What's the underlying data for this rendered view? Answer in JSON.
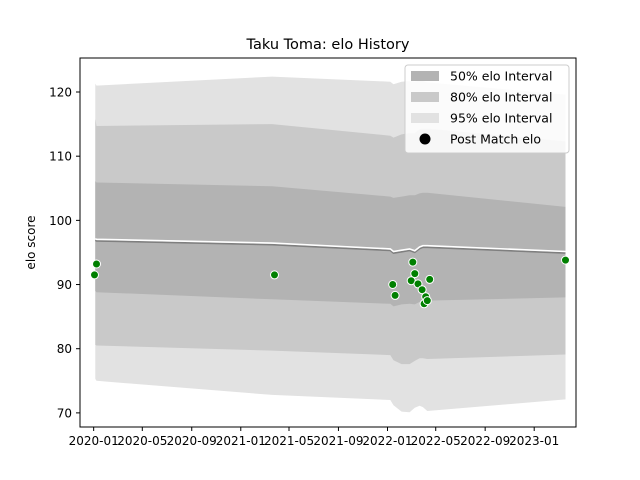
{
  "chart_data": {
    "type": "line",
    "title": "Taku Toma: elo History",
    "xlabel": "",
    "ylabel": "elo score",
    "xlim": [
      "2019-11-28",
      "2023-04-15"
    ],
    "ylim": [
      67.8,
      125.3
    ],
    "x_ticks": [
      "2020-01",
      "2020-05",
      "2020-09",
      "2021-01",
      "2021-05",
      "2021-09",
      "2022-01",
      "2022-05",
      "2022-09",
      "2023-01"
    ],
    "y_ticks": [
      70,
      80,
      90,
      100,
      110,
      120
    ],
    "grid": false,
    "legend_position": "top-right",
    "legend": [
      {
        "label": "50% elo Interval",
        "kind": "band",
        "color": "#b3b3b3"
      },
      {
        "label": "80% elo Interval",
        "kind": "band",
        "color": "#c9c9c9"
      },
      {
        "label": "95% elo Interval",
        "kind": "band",
        "color": "#e2e2e2"
      },
      {
        "label": "Post Match elo",
        "kind": "marker",
        "color": "#000000"
      }
    ],
    "colors": {
      "band50": "#b3b3b3",
      "band80": "#c9c9c9",
      "band95": "#e2e2e2",
      "mean_line": "#7f7f7f",
      "mean_highlight": "#ffffff",
      "points": "#008000"
    },
    "series": [
      {
        "name": "mean",
        "x": [
          "2020-01-05",
          "2020-01-08",
          "2021-03-20",
          "2022-01-08",
          "2022-01-16",
          "2022-02-05",
          "2022-02-25",
          "2022-03-10",
          "2022-03-22",
          "2022-03-30",
          "2022-04-10",
          "2023-03-20"
        ],
        "y": [
          96.9,
          96.8,
          96.2,
          95.3,
          94.9,
          95.1,
          95.3,
          95.0,
          95.6,
          95.8,
          95.8,
          94.9
        ]
      }
    ],
    "bands": {
      "x": [
        "2020-01-05",
        "2020-01-08",
        "2021-03-20",
        "2022-01-08",
        "2022-01-16",
        "2022-02-05",
        "2022-02-25",
        "2022-03-10",
        "2022-03-22",
        "2022-03-30",
        "2022-04-10",
        "2023-03-20"
      ],
      "band95_upper": [
        121.3,
        121.0,
        122.4,
        121.6,
        121.2,
        121.6,
        121.7,
        121.6,
        121.8,
        121.7,
        121.5,
        119.6
      ],
      "band95_lower": [
        75.3,
        75.0,
        72.8,
        72.0,
        71.2,
        70.2,
        70.1,
        70.8,
        71.1,
        70.9,
        70.3,
        72.1
      ],
      "band80_upper": [
        115.8,
        114.7,
        115.0,
        113.2,
        112.9,
        113.4,
        113.6,
        113.6,
        114.2,
        114.3,
        114.3,
        112.3
      ],
      "band80_lower": [
        80.6,
        80.5,
        79.7,
        79.0,
        78.2,
        77.6,
        77.6,
        78.1,
        78.5,
        78.5,
        78.4,
        79.1
      ],
      "band50_upper": [
        106.1,
        105.9,
        105.3,
        103.7,
        103.5,
        103.7,
        103.9,
        103.9,
        104.2,
        104.3,
        104.3,
        102.1
      ],
      "band50_lower": [
        89.0,
        88.8,
        87.7,
        87.0,
        86.6,
        86.9,
        87.0,
        86.9,
        87.3,
        87.5,
        87.5,
        88.0
      ]
    },
    "points": {
      "x": [
        "2020-01-03",
        "2020-01-08",
        "2021-03-26",
        "2022-01-14",
        "2022-01-20",
        "2022-03-01",
        "2022-03-05",
        "2022-03-10",
        "2022-03-18",
        "2022-03-28",
        "2022-04-02",
        "2022-04-06",
        "2022-04-10",
        "2022-04-16",
        "2023-03-20"
      ],
      "y": [
        91.5,
        93.2,
        91.5,
        90.0,
        88.3,
        90.6,
        93.5,
        91.7,
        90.1,
        89.2,
        87.0,
        88.1,
        87.5,
        90.8,
        93.8
      ]
    }
  }
}
